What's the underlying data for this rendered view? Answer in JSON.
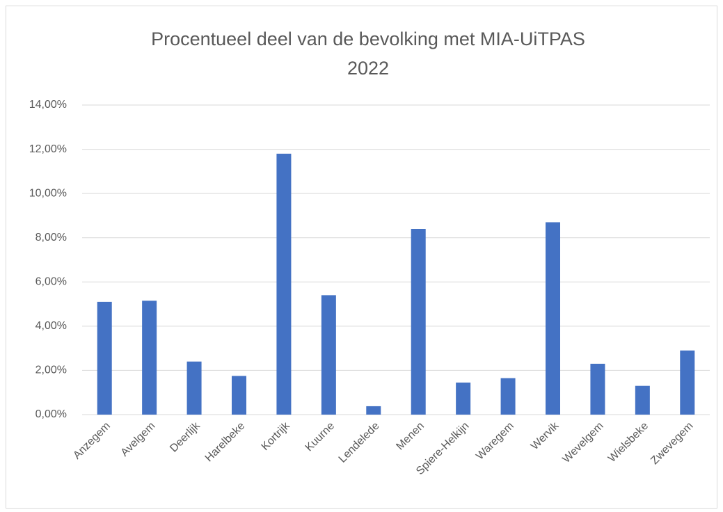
{
  "chart_data": {
    "type": "bar",
    "title": [
      "Procentueel deel van de bevolking met MIA-UiTPAS",
      "2022"
    ],
    "categories": [
      "Anzegem",
      "Avelgem",
      "Deerlijk",
      "Harelbeke",
      "Kortrijk",
      "Kuurne",
      "Lendelede",
      "Menen",
      "Spiere-Helkijn",
      "Waregem",
      "Wervik",
      "Wevelgem",
      "Wielsbeke",
      "Zwevegem"
    ],
    "values": [
      5.1,
      5.15,
      2.4,
      1.75,
      11.8,
      5.4,
      0.38,
      8.4,
      1.45,
      1.65,
      8.7,
      2.3,
      1.3,
      2.9
    ],
    "color": "#4472c4",
    "ylim": [
      0,
      14
    ],
    "yticks": [
      {
        "value": 0,
        "label": "0,00%"
      },
      {
        "value": 2,
        "label": "2,00%"
      },
      {
        "value": 4,
        "label": "4,00%"
      },
      {
        "value": 6,
        "label": "6,00%"
      },
      {
        "value": 8,
        "label": "8,00%"
      },
      {
        "value": 10,
        "label": "10,00%"
      },
      {
        "value": 12,
        "label": "12,00%"
      },
      {
        "value": 14,
        "label": "14,00%"
      }
    ],
    "grid": true
  }
}
